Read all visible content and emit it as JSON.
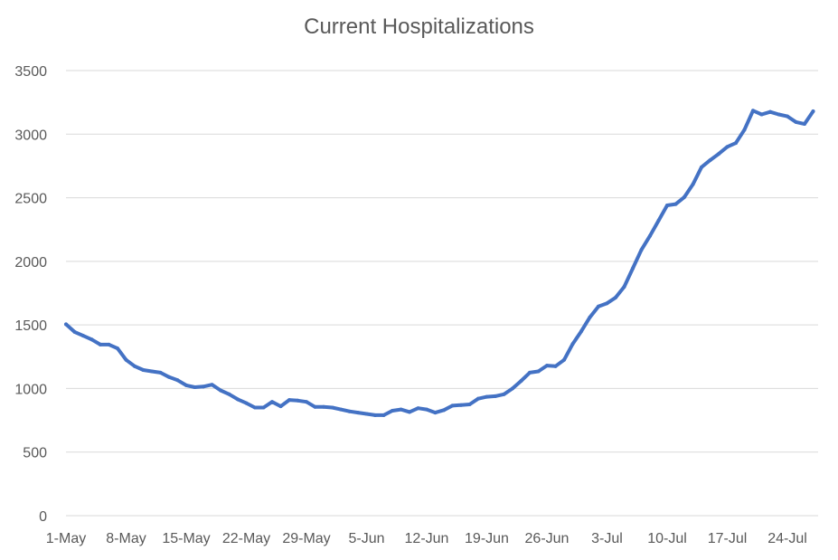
{
  "chart_data": {
    "type": "line",
    "title": "Current Hospitalizations",
    "xlabel": "",
    "ylabel": "",
    "ylim": [
      0,
      3500
    ],
    "y_ticks": [
      0,
      500,
      1000,
      1500,
      2000,
      2500,
      3000,
      3500
    ],
    "grid": true,
    "legend": "none",
    "x_tick_labels": [
      "1-May",
      "8-May",
      "15-May",
      "22-May",
      "29-May",
      "5-Jun",
      "12-Jun",
      "19-Jun",
      "26-Jun",
      "3-Jul",
      "10-Jul",
      "17-Jul",
      "24-Jul"
    ],
    "x_start": "1-May",
    "series": [
      {
        "color": "#4472c4",
        "values": [
          1505,
          1445,
          1415,
          1385,
          1345,
          1345,
          1315,
          1225,
          1175,
          1145,
          1135,
          1125,
          1090,
          1065,
          1025,
          1010,
          1015,
          1030,
          985,
          955,
          915,
          885,
          850,
          850,
          895,
          860,
          910,
          905,
          895,
          855,
          855,
          850,
          835,
          820,
          810,
          800,
          790,
          790,
          825,
          835,
          815,
          845,
          835,
          810,
          830,
          865,
          870,
          875,
          920,
          935,
          940,
          955,
          1000,
          1060,
          1125,
          1135,
          1180,
          1175,
          1225,
          1350,
          1450,
          1560,
          1645,
          1670,
          1715,
          1800,
          1945,
          2090,
          2200,
          2320,
          2440,
          2450,
          2505,
          2605,
          2740,
          2795,
          2845,
          2900,
          2930,
          3035,
          3185,
          3155,
          3175,
          3155,
          3140,
          3095,
          3080,
          3180
        ]
      }
    ]
  }
}
